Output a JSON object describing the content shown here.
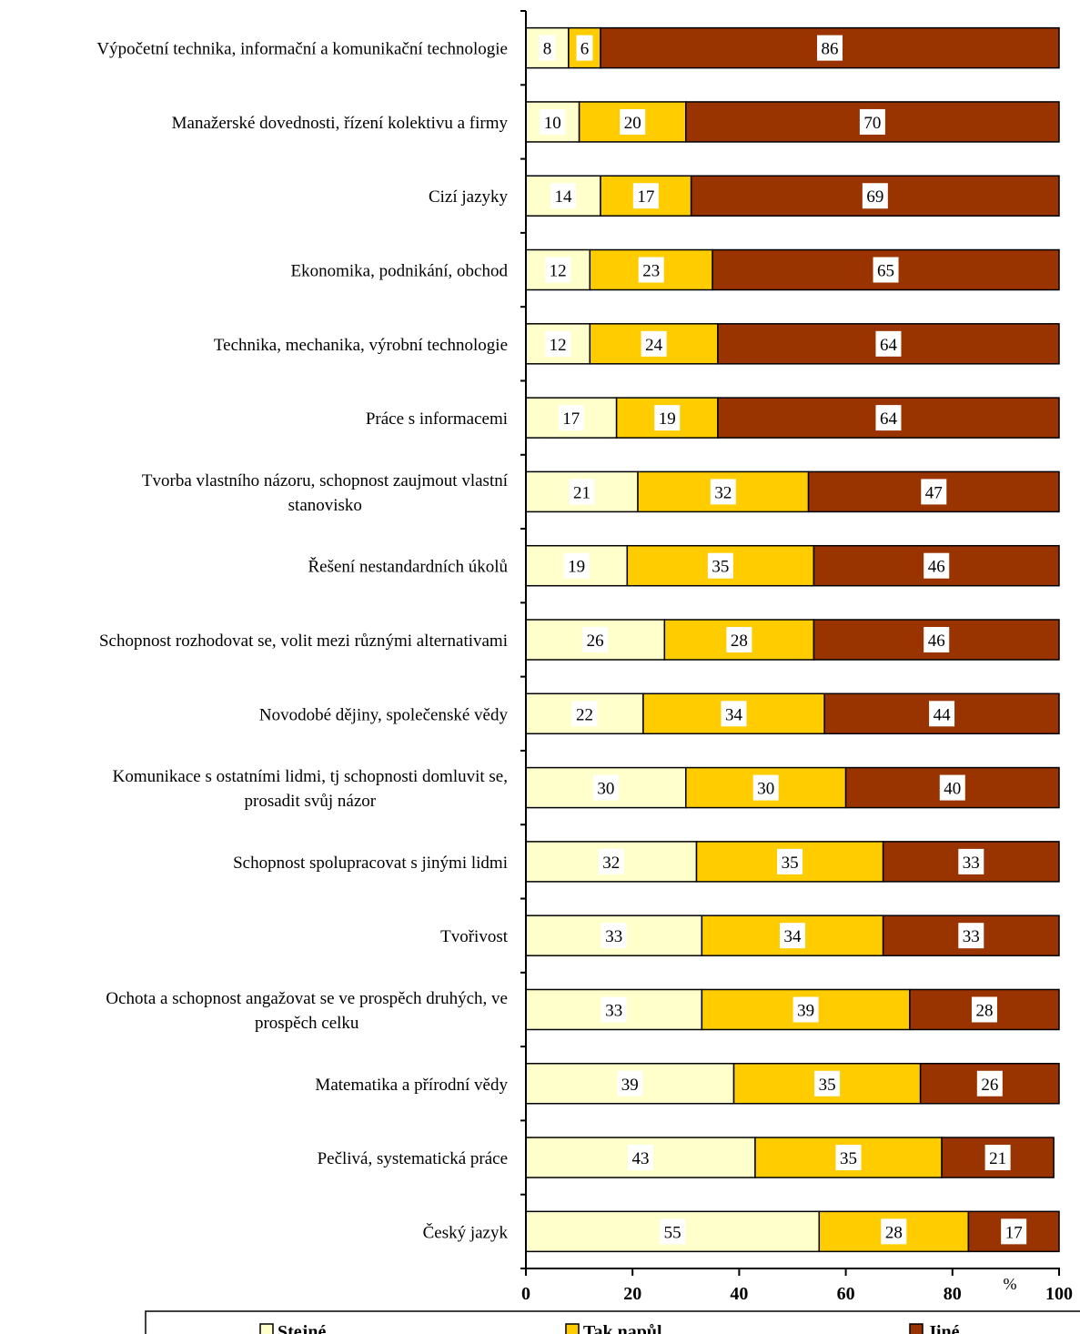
{
  "chart_data": {
    "type": "bar",
    "orientation": "horizontal",
    "stacked": true,
    "categories": [
      "Výpočetní technika, informační a komunikační technologie",
      "Manažerské dovednosti, řízení kolektivu a firmy",
      "Cizí jazyky",
      "Ekonomika, podnikání, obchod",
      "Technika, mechanika, výrobní technologie",
      "Práce s informacemi",
      "Tvorba vlastního názoru, schopnost zaujmout vlastní stanovisko",
      "Řešení nestandardních úkolů",
      "Schopnost rozhodovat se, volit mezi různými alternativami",
      "Novodobé dějiny, společenské vědy",
      "Komunikace s ostatními lidmi, tj schopnosti domluvit se, prosadit svůj názor",
      "Schopnost spolupracovat s jinými lidmi",
      "Tvořivost",
      "Ochota a schopnost angažovat se ve prospěch druhých, ve prospěch celku",
      "Matematika a přírodní vědy",
      "Pečlivá, systematická práce",
      "Český jazyk"
    ],
    "category_lines": [
      [
        "Výpočetní technika, informační a komunikační technologie"
      ],
      [
        "Manažerské dovednosti, řízení kolektivu a firmy"
      ],
      [
        "Cizí jazyky"
      ],
      [
        "Ekonomika, podnikání, obchod"
      ],
      [
        "Technika, mechanika, výrobní technologie"
      ],
      [
        "Práce s informacemi"
      ],
      [
        "Tvorba vlastního názoru, schopnost zaujmout vlastní",
        "stanovisko"
      ],
      [
        "Řešení nestandardních úkolů"
      ],
      [
        "Schopnost rozhodovat se, volit mezi různými alternativami"
      ],
      [
        "Novodobé dějiny, společenské vědy"
      ],
      [
        "Komunikace s ostatními lidmi, tj schopnosti domluvit se,",
        "prosadit svůj názor"
      ],
      [
        "Schopnost spolupracovat s jinými lidmi"
      ],
      [
        "Tvořivost"
      ],
      [
        "Ochota a schopnost angažovat se ve prospěch druhých, ve",
        "prospěch celku"
      ],
      [
        "Matematika a přírodní vědy"
      ],
      [
        "Pečlivá, systematická práce"
      ],
      [
        "Český jazyk"
      ]
    ],
    "series": [
      {
        "name": "Stejné",
        "color": "#ffffcc",
        "values": [
          8,
          10,
          14,
          12,
          12,
          17,
          21,
          19,
          26,
          22,
          30,
          32,
          33,
          33,
          39,
          43,
          55
        ]
      },
      {
        "name": "Tak napůl",
        "color": "#ffcc00",
        "values": [
          6,
          20,
          17,
          23,
          24,
          19,
          32,
          35,
          28,
          34,
          30,
          35,
          34,
          39,
          35,
          35,
          28
        ]
      },
      {
        "name": "Jiné",
        "color": "#993300",
        "values": [
          86,
          70,
          69,
          65,
          64,
          64,
          47,
          46,
          46,
          44,
          40,
          33,
          33,
          28,
          26,
          21,
          17
        ]
      }
    ],
    "x_axis": {
      "ticks": [
        "0",
        "20",
        "40",
        "60",
        "80",
        "100"
      ],
      "unit": "%",
      "range": [
        0,
        100
      ]
    },
    "legend": {
      "placement": "bottom"
    },
    "grid": false
  }
}
